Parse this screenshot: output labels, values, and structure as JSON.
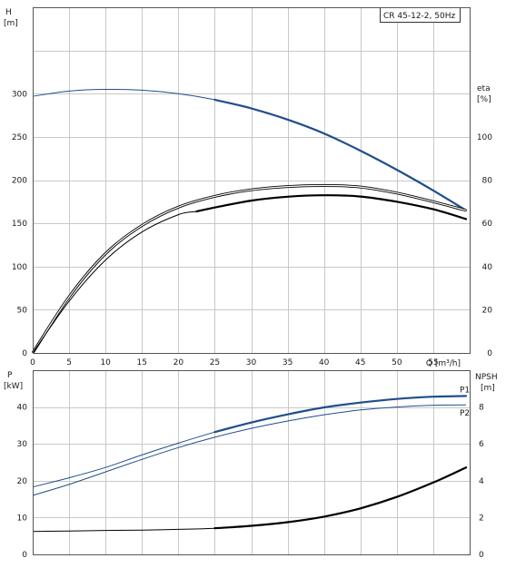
{
  "chart_data": {
    "title": "CR 45-12-2, 50Hz",
    "colors": {
      "blue": "#1f4e8c",
      "black": "#000000",
      "grid": "#c8c8c8"
    },
    "top": {
      "type": "line",
      "grid": true,
      "x": {
        "label": "Q [m³/h]",
        "ticks": [
          0,
          5,
          10,
          15,
          20,
          25,
          30,
          35,
          40,
          45,
          50,
          55
        ],
        "range": [
          0,
          60
        ]
      },
      "y_left": {
        "label_top": "H",
        "label_unit": "[m]",
        "ticks": [
          0,
          50,
          100,
          150,
          200,
          250,
          300
        ],
        "range": [
          0,
          400
        ]
      },
      "y_right": {
        "label_top": "eta",
        "label_unit": "[%]",
        "ticks": [
          0,
          20,
          40,
          60,
          80,
          100
        ],
        "range": [
          0,
          160
        ]
      },
      "series": [
        {
          "axis": "left",
          "color": "blue",
          "kind": "single",
          "bold_from": 22.5,
          "points": [
            [
              0,
              297
            ],
            [
              5,
              303
            ],
            [
              10,
              305
            ],
            [
              15,
              304
            ],
            [
              20,
              300
            ],
            [
              25,
              293
            ],
            [
              30,
              283
            ],
            [
              35,
              270
            ],
            [
              40,
              254
            ],
            [
              45,
              234
            ],
            [
              50,
              212
            ],
            [
              55,
              188
            ],
            [
              59.5,
              165
            ]
          ]
        },
        {
          "axis": "right",
          "color": "black",
          "kind": "double",
          "points": [
            [
              0,
              0
            ],
            [
              5,
              26
            ],
            [
              10,
              46
            ],
            [
              15,
              59
            ],
            [
              20,
              67.5
            ],
            [
              25,
              72.5
            ],
            [
              30,
              75.5
            ],
            [
              35,
              77
            ],
            [
              40,
              77.5
            ],
            [
              45,
              76.8
            ],
            [
              50,
              74
            ],
            [
              55,
              70
            ],
            [
              59.5,
              66
            ]
          ]
        },
        {
          "axis": "right",
          "color": "black",
          "kind": "single",
          "bold_from": 22.5,
          "points": [
            [
              0,
              0
            ],
            [
              5,
              24
            ],
            [
              10,
              43
            ],
            [
              15,
              56
            ],
            [
              20,
              64
            ],
            [
              22.5,
              65.5
            ],
            [
              25,
              67.3
            ],
            [
              30,
              70.5
            ],
            [
              35,
              72.3
            ],
            [
              40,
              73
            ],
            [
              45,
              72.4
            ],
            [
              50,
              70
            ],
            [
              55,
              66.5
            ],
            [
              59.5,
              62
            ]
          ]
        }
      ]
    },
    "bottom": {
      "type": "line",
      "grid": true,
      "x": {
        "range": [
          0,
          60
        ]
      },
      "y_left": {
        "label_top": "P",
        "label_unit": "[kW]",
        "ticks": [
          0,
          10,
          20,
          30,
          40
        ],
        "range": [
          0,
          50
        ]
      },
      "y_right": {
        "label_top": "NPSH",
        "label_unit": "[m]",
        "ticks": [
          0,
          2,
          4,
          6,
          8
        ],
        "range": [
          0,
          10
        ]
      },
      "series": [
        {
          "name": "P1",
          "axis": "left",
          "color": "blue",
          "kind": "single",
          "bold_from": 22.5,
          "points": [
            [
              0,
              18.3
            ],
            [
              5,
              20.8
            ],
            [
              10,
              23.6
            ],
            [
              15,
              27
            ],
            [
              20,
              30.2
            ],
            [
              25,
              33.2
            ],
            [
              30,
              35.8
            ],
            [
              35,
              38
            ],
            [
              40,
              39.9
            ],
            [
              45,
              41.2
            ],
            [
              50,
              42.2
            ],
            [
              55,
              42.8
            ],
            [
              59.5,
              43
            ]
          ]
        },
        {
          "name": "P2",
          "axis": "left",
          "color": "blue",
          "kind": "single",
          "bold_from": 100,
          "points": [
            [
              0,
              16
            ],
            [
              5,
              19
            ],
            [
              10,
              22.4
            ],
            [
              15,
              25.8
            ],
            [
              20,
              29
            ],
            [
              25,
              31.8
            ],
            [
              30,
              34.2
            ],
            [
              35,
              36.2
            ],
            [
              40,
              37.9
            ],
            [
              45,
              39.2
            ],
            [
              50,
              40
            ],
            [
              55,
              40.5
            ],
            [
              59.5,
              40.6
            ]
          ]
        },
        {
          "axis": "right",
          "color": "black",
          "kind": "single",
          "bold_from": 22.5,
          "points": [
            [
              0,
              1.24
            ],
            [
              5,
              1.27
            ],
            [
              10,
              1.3
            ],
            [
              15,
              1.32
            ],
            [
              20,
              1.36
            ],
            [
              25,
              1.42
            ],
            [
              30,
              1.55
            ],
            [
              35,
              1.75
            ],
            [
              40,
              2.05
            ],
            [
              45,
              2.5
            ],
            [
              50,
              3.12
            ],
            [
              55,
              3.9
            ],
            [
              59.5,
              4.72
            ]
          ]
        }
      ]
    }
  }
}
